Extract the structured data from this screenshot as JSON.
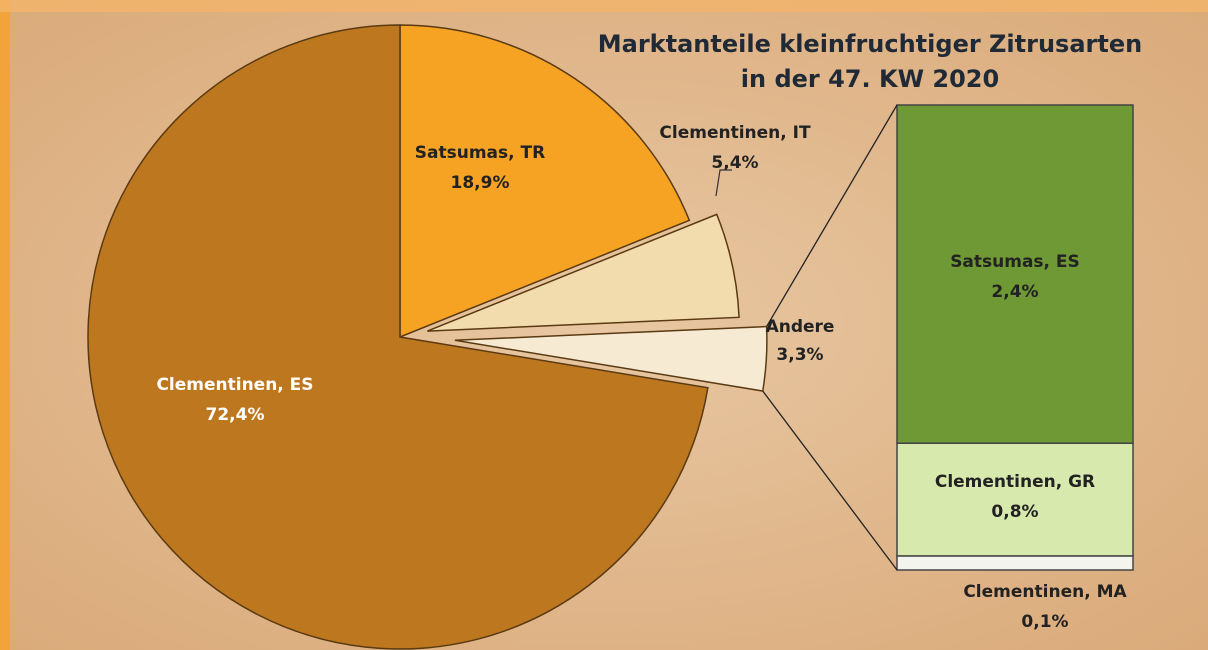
{
  "chart_data": {
    "type": "pie",
    "title": [
      "Marktanteile kleinfruchtiger Zitrusarten",
      "in der 47. KW 2020"
    ],
    "categories": [
      "Satsumas, TR",
      "Clementinen, IT",
      "Andere",
      "Clementinen, ES"
    ],
    "values": [
      18.9,
      5.4,
      3.3,
      72.4
    ],
    "value_labels": [
      "18,9%",
      "5,4%",
      "3,3%",
      "72,4%"
    ],
    "colors": [
      "#f6a324",
      "#f2dcad",
      "#f6ead2",
      "#bd771f"
    ],
    "breakdown": {
      "categories": [
        "Clementinen, MA",
        "Clementinen, GR",
        "Satsumas, ES"
      ],
      "values": [
        0.1,
        0.8,
        2.4
      ],
      "value_labels": [
        "0,1%",
        "0,8%",
        "2,4%"
      ],
      "colors": [
        "#f4f4ee",
        "#d8e9ad",
        "#6e9934"
      ]
    }
  }
}
